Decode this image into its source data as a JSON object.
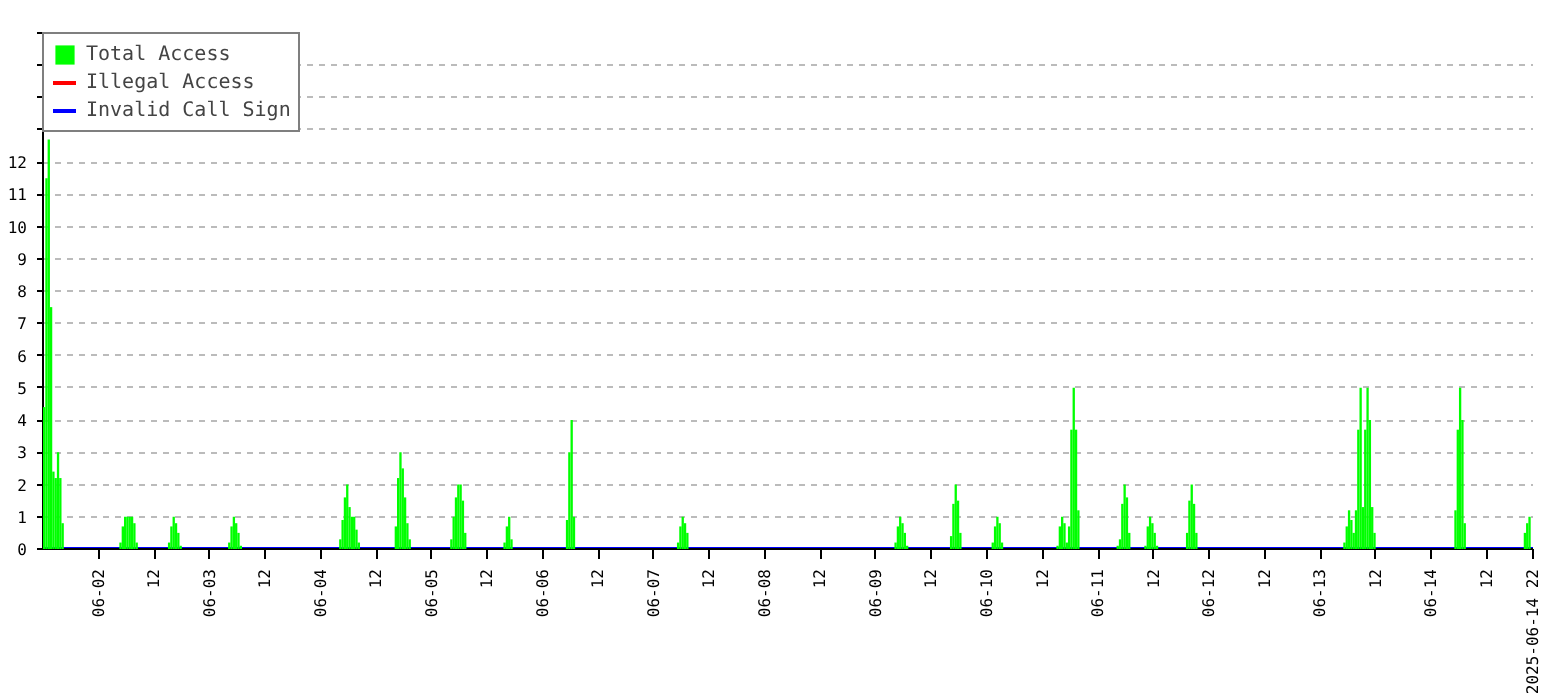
{
  "chart_data": {
    "type": "bar",
    "grid": "y",
    "legend": "top left",
    "xlim": [
      "2025-06-01T12:00",
      "2025-06-14T22:00"
    ],
    "xticks": [
      {
        "value": "2025-06-02T00:00",
        "label": "06-02"
      },
      {
        "value": "2025-06-02T12:00",
        "label": "12"
      },
      {
        "value": "2025-06-03T00:00",
        "label": "06-03"
      },
      {
        "value": "2025-06-03T12:00",
        "label": "12"
      },
      {
        "value": "2025-06-04T00:00",
        "label": "06-04"
      },
      {
        "value": "2025-06-04T12:00",
        "label": "12"
      },
      {
        "value": "2025-06-05T00:00",
        "label": "06-05"
      },
      {
        "value": "2025-06-05T12:00",
        "label": "12"
      },
      {
        "value": "2025-06-06T00:00",
        "label": "06-06"
      },
      {
        "value": "2025-06-06T12:00",
        "label": "12"
      },
      {
        "value": "2025-06-07T00:00",
        "label": "06-07"
      },
      {
        "value": "2025-06-07T12:00",
        "label": "12"
      },
      {
        "value": "2025-06-08T00:00",
        "label": "06-08"
      },
      {
        "value": "2025-06-08T12:00",
        "label": "12"
      },
      {
        "value": "2025-06-09T00:00",
        "label": "06-09"
      },
      {
        "value": "2025-06-09T12:00",
        "label": "12"
      },
      {
        "value": "2025-06-10T00:00",
        "label": "06-10"
      },
      {
        "value": "2025-06-10T12:00",
        "label": "12"
      },
      {
        "value": "2025-06-11T00:00",
        "label": "06-11"
      },
      {
        "value": "2025-06-11T12:00",
        "label": "12"
      },
      {
        "value": "2025-06-12T00:00",
        "label": "06-12"
      },
      {
        "value": "2025-06-12T12:00",
        "label": "12"
      },
      {
        "value": "2025-06-13T00:00",
        "label": "06-13"
      },
      {
        "value": "2025-06-13T12:00",
        "label": "12"
      },
      {
        "value": "2025-06-14T00:00",
        "label": "06-14"
      },
      {
        "value": "2025-06-14T12:00",
        "label": "12"
      },
      {
        "value": "2025-06-14T22:00",
        "label": "2025-06-14 22"
      }
    ],
    "ylim": [
      0,
      16
    ],
    "yticks": [
      0,
      1,
      2,
      3,
      4,
      5,
      6,
      7,
      8,
      9,
      10,
      11,
      12,
      {
        "value": 13,
        "label": null
      },
      {
        "value": 14,
        "label": null
      },
      {
        "value": 15,
        "label": null
      },
      {
        "value": 16,
        "label": null
      }
    ],
    "series": [
      {
        "name": "Total Access",
        "color": "#00ff00",
        "x": [
          "2025-06-01T12:00",
          "2025-06-01T12:30",
          "2025-06-01T13:00",
          "2025-06-01T13:30",
          "2025-06-01T14:00",
          "2025-06-01T14:30",
          "2025-06-01T15:00",
          "2025-06-01T15:30",
          "2025-06-01T16:00",
          "2025-06-02T04:30",
          "2025-06-02T05:00",
          "2025-06-02T05:30",
          "2025-06-02T06:00",
          "2025-06-02T06:30",
          "2025-06-02T07:00",
          "2025-06-02T07:30",
          "2025-06-02T08:00",
          "2025-06-02T15:00",
          "2025-06-02T15:30",
          "2025-06-02T16:00",
          "2025-06-02T16:30",
          "2025-06-02T17:00",
          "2025-06-02T17:30",
          "2025-06-03T04:00",
          "2025-06-03T04:30",
          "2025-06-03T05:00",
          "2025-06-03T05:30",
          "2025-06-03T06:00",
          "2025-06-03T06:30",
          "2025-06-04T04:00",
          "2025-06-04T04:30",
          "2025-06-04T05:00",
          "2025-06-04T05:30",
          "2025-06-04T06:00",
          "2025-06-04T06:30",
          "2025-06-04T07:00",
          "2025-06-04T07:30",
          "2025-06-04T08:00",
          "2025-06-04T16:00",
          "2025-06-04T16:30",
          "2025-06-04T17:00",
          "2025-06-04T17:30",
          "2025-06-04T18:00",
          "2025-06-04T18:30",
          "2025-06-04T19:00",
          "2025-06-05T04:00",
          "2025-06-05T04:30",
          "2025-06-05T05:00",
          "2025-06-05T05:30",
          "2025-06-05T06:00",
          "2025-06-05T06:30",
          "2025-06-05T07:00",
          "2025-06-05T15:30",
          "2025-06-05T16:00",
          "2025-06-05T16:30",
          "2025-06-05T17:00",
          "2025-06-06T05:00",
          "2025-06-06T05:30",
          "2025-06-06T06:00",
          "2025-06-06T06:30",
          "2025-06-07T05:00",
          "2025-06-07T05:30",
          "2025-06-07T06:00",
          "2025-06-07T06:30",
          "2025-06-07T07:00",
          "2025-06-09T04:00",
          "2025-06-09T04:30",
          "2025-06-09T05:00",
          "2025-06-09T05:30",
          "2025-06-09T06:00",
          "2025-06-09T06:30",
          "2025-06-09T16:00",
          "2025-06-09T16:30",
          "2025-06-09T17:00",
          "2025-06-09T17:30",
          "2025-06-09T18:00",
          "2025-06-10T01:00",
          "2025-06-10T01:30",
          "2025-06-10T02:00",
          "2025-06-10T02:30",
          "2025-06-10T03:00",
          "2025-06-10T15:00",
          "2025-06-10T15:30",
          "2025-06-10T16:00",
          "2025-06-10T16:30",
          "2025-06-10T17:00",
          "2025-06-10T17:30",
          "2025-06-10T18:00",
          "2025-06-10T18:30",
          "2025-06-10T19:00",
          "2025-06-10T19:30",
          "2025-06-11T04:00",
          "2025-06-11T04:30",
          "2025-06-11T05:00",
          "2025-06-11T05:30",
          "2025-06-11T06:00",
          "2025-06-11T06:30",
          "2025-06-11T10:00",
          "2025-06-11T10:30",
          "2025-06-11T11:00",
          "2025-06-11T11:30",
          "2025-06-11T12:00",
          "2025-06-11T12:30",
          "2025-06-11T19:00",
          "2025-06-11T19:30",
          "2025-06-11T20:00",
          "2025-06-11T20:30",
          "2025-06-11T21:00",
          "2025-06-13T05:00",
          "2025-06-13T05:30",
          "2025-06-13T06:00",
          "2025-06-13T06:30",
          "2025-06-13T07:00",
          "2025-06-13T07:30",
          "2025-06-13T08:00",
          "2025-06-13T08:30",
          "2025-06-13T09:00",
          "2025-06-13T09:30",
          "2025-06-13T10:00",
          "2025-06-13T10:30",
          "2025-06-13T11:00",
          "2025-06-13T11:30",
          "2025-06-14T05:00",
          "2025-06-14T05:30",
          "2025-06-14T06:00",
          "2025-06-14T06:30",
          "2025-06-14T07:00",
          "2025-06-14T20:00",
          "2025-06-14T20:30",
          "2025-06-14T21:00"
        ],
        "values": [
          4.4,
          11.5,
          12.7,
          7.5,
          2.4,
          2.2,
          3,
          2.2,
          0.8,
          0.2,
          0.7,
          1,
          1,
          1,
          1,
          0.8,
          0.2,
          0.2,
          0.7,
          1,
          0.8,
          0.5,
          0.1,
          0.2,
          0.7,
          1,
          0.8,
          0.5,
          0.1,
          0.3,
          0.9,
          1.6,
          2,
          1.3,
          1,
          1,
          0.6,
          0.2,
          0.7,
          2.2,
          3,
          2.5,
          1.6,
          0.8,
          0.3,
          0.3,
          1,
          1.6,
          2,
          2,
          1.5,
          0.5,
          0.2,
          0.7,
          1,
          0.3,
          0.9,
          3,
          4,
          1,
          0.2,
          0.7,
          1,
          0.8,
          0.5,
          0.2,
          0.7,
          1,
          0.8,
          0.5,
          0.1,
          0.4,
          1.4,
          2,
          1.5,
          0.5,
          0.2,
          0.7,
          1,
          0.8,
          0.2,
          0.1,
          0.7,
          1,
          0.8,
          0.2,
          0.7,
          3.7,
          5,
          3.7,
          1.2,
          0.1,
          0.3,
          1.4,
          2,
          1.6,
          0.5,
          0.1,
          0.7,
          1,
          0.8,
          0.5,
          0.1,
          0.5,
          1.5,
          2,
          1.4,
          0.5,
          0.2,
          0.7,
          1.2,
          0.9,
          0.5,
          1.2,
          3.7,
          5,
          1.3,
          3.7,
          5,
          4,
          1.3,
          0.5,
          1.2,
          3.7,
          5,
          4,
          0.8,
          0.5,
          0.8,
          1
        ]
      },
      {
        "name": "Illegal Access",
        "color": "#ff0000",
        "type": "line"
      },
      {
        "name": "Invalid Call Sign",
        "color": "#0000ff",
        "type": "line",
        "x": [
          "2025-06-01T12:00",
          "2025-06-14T22:00"
        ],
        "values": [
          0,
          0
        ]
      }
    ]
  }
}
